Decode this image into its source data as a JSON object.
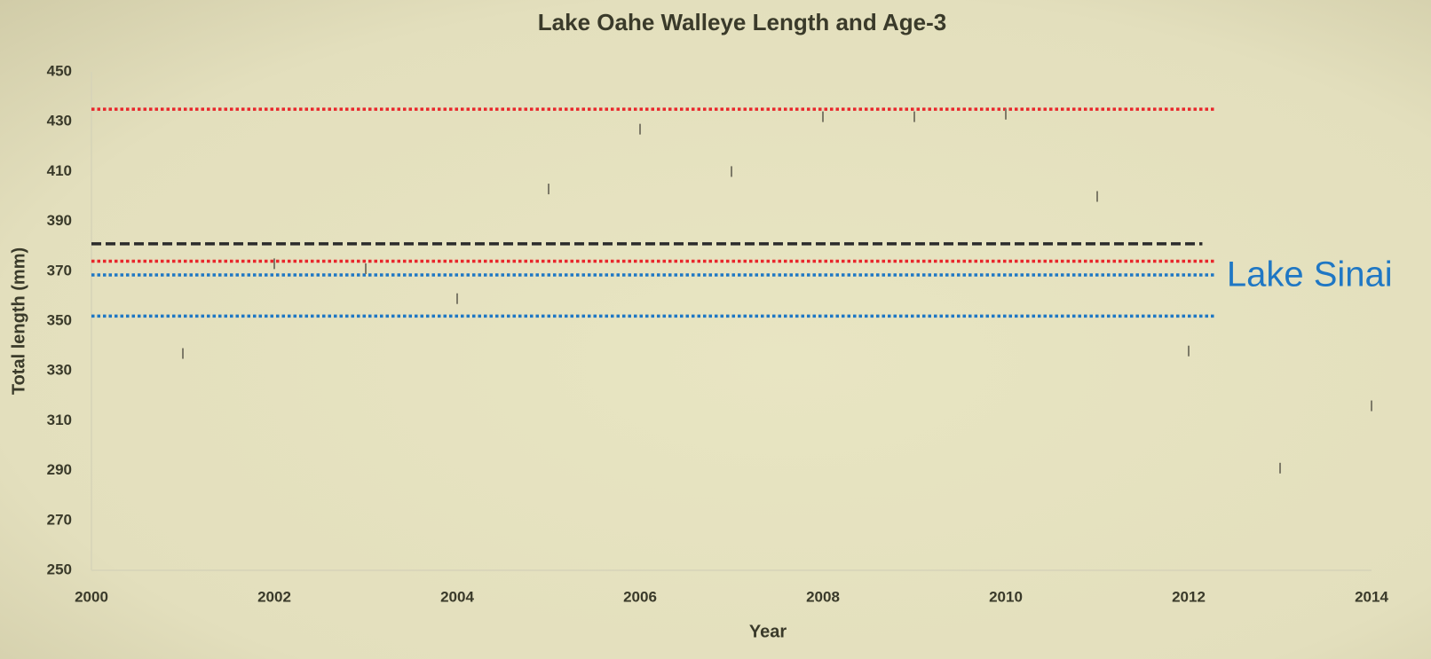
{
  "chart_data": {
    "type": "scatter",
    "title": "Lake Oahe Walleye Length and Age-3",
    "x_label": "Year",
    "y_label": "Total length (mm)",
    "x": [
      2001,
      2002,
      2003,
      2004,
      2005,
      2006,
      2007,
      2008,
      2009,
      2010,
      2011,
      2012,
      2013,
      2014
    ],
    "values": [
      337,
      373,
      371,
      359,
      403,
      427,
      410,
      432,
      432,
      433,
      400,
      338,
      291,
      316
    ],
    "color": "#7d7a68",
    "xlim": [
      2000,
      2014
    ],
    "xticks": [
      2000,
      2002,
      2004,
      2006,
      2008,
      2010,
      2012,
      2014
    ],
    "ylim": [
      250,
      450
    ],
    "yticks": [
      250,
      270,
      290,
      310,
      330,
      350,
      370,
      390,
      410,
      430,
      450
    ],
    "reference_lines": [
      {
        "value": 435,
        "color": "#e8262b",
        "style": "dotted",
        "x": [
          2000,
          2012.3
        ]
      },
      {
        "value": 381,
        "color": "#2b2b2b",
        "style": "dashed",
        "x": [
          2000,
          2012.15
        ]
      },
      {
        "value": 374,
        "color": "#e8262b",
        "style": "dotted",
        "x": [
          2000,
          2012.3
        ]
      },
      {
        "value": 368.5,
        "color": "#1f77c4",
        "style": "dotted",
        "x": [
          2000,
          2012.3
        ]
      },
      {
        "value": 352,
        "color": "#1f77c4",
        "style": "dotted",
        "x": [
          2000,
          2012.3
        ]
      }
    ],
    "annotation": {
      "text": "Lake Sinai",
      "color": "#1f77c4"
    }
  }
}
